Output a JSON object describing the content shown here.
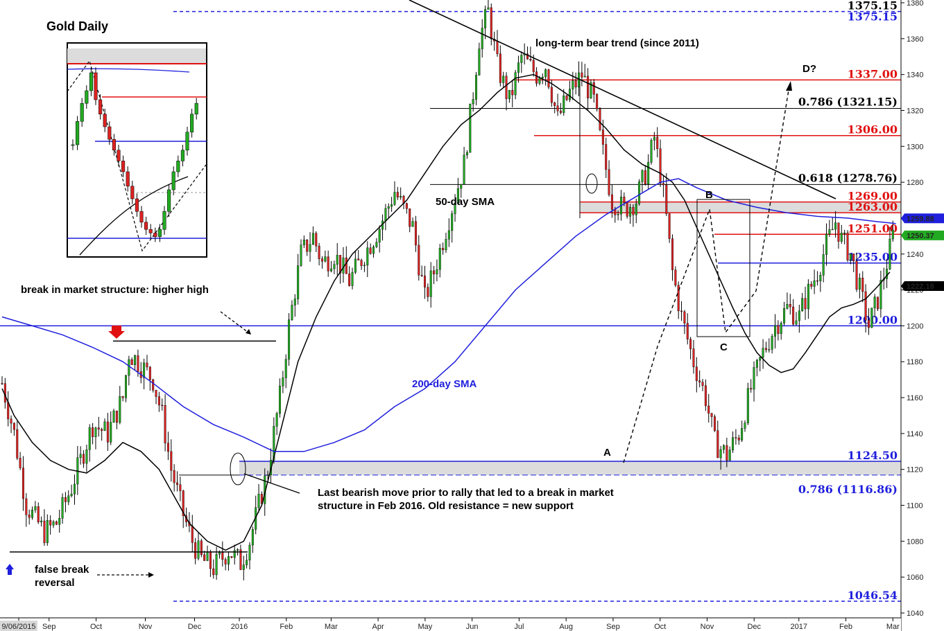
{
  "chart_data": {
    "type": "candlestick",
    "title": "Gold Daily",
    "y_range": [
      1040,
      1380
    ],
    "y_ticks": [
      1040,
      1060,
      1080,
      1100,
      1120,
      1140,
      1160,
      1180,
      1200,
      1220,
      1240,
      1260,
      1280,
      1300,
      1320,
      1340,
      1360,
      1380
    ],
    "x_ticks": [
      "9/06/2015",
      "Sep",
      "Oct",
      "Nov",
      "Dec",
      "2016",
      "Feb",
      "Mar",
      "Apr",
      "May",
      "Jun",
      "Jul",
      "Aug",
      "Sep",
      "Oct",
      "Nov",
      "Dec",
      "2017",
      "Feb",
      "Mar"
    ],
    "colors": {
      "bull": "#22aa22",
      "bear": "#dd2222",
      "sma200": "#1f1fdd",
      "sma50": "#000000",
      "red_level": "#e01010",
      "blue_level": "#1f1fdd"
    },
    "price_path": [
      [
        0,
        1168
      ],
      [
        4,
        1140
      ],
      [
        8,
        1100
      ],
      [
        14,
        1085
      ],
      [
        18,
        1090
      ],
      [
        23,
        1110
      ],
      [
        27,
        1130
      ],
      [
        30,
        1145
      ],
      [
        35,
        1140
      ],
      [
        40,
        1160
      ],
      [
        42,
        1185
      ],
      [
        45,
        1180
      ],
      [
        50,
        1170
      ],
      [
        53,
        1150
      ],
      [
        56,
        1120
      ],
      [
        60,
        1095
      ],
      [
        63,
        1080
      ],
      [
        66,
        1070
      ],
      [
        70,
        1065
      ],
      [
        75,
        1075
      ],
      [
        79,
        1068
      ],
      [
        82,
        1080
      ],
      [
        85,
        1100
      ],
      [
        88,
        1120
      ],
      [
        92,
        1160
      ],
      [
        95,
        1200
      ],
      [
        99,
        1240
      ],
      [
        103,
        1250
      ],
      [
        106,
        1235
      ],
      [
        110,
        1240
      ],
      [
        115,
        1225
      ],
      [
        120,
        1240
      ],
      [
        125,
        1255
      ],
      [
        130,
        1275
      ],
      [
        136,
        1255
      ],
      [
        140,
        1215
      ],
      [
        143,
        1230
      ],
      [
        148,
        1260
      ],
      [
        153,
        1290
      ],
      [
        156,
        1330
      ],
      [
        158,
        1360
      ],
      [
        161,
        1375
      ],
      [
        164,
        1345
      ],
      [
        168,
        1325
      ],
      [
        172,
        1350
      ],
      [
        177,
        1340
      ],
      [
        180,
        1345
      ],
      [
        184,
        1315
      ],
      [
        188,
        1330
      ],
      [
        192,
        1340
      ],
      [
        196,
        1325
      ],
      [
        198,
        1305
      ],
      [
        202,
        1270
      ],
      [
        206,
        1265
      ],
      [
        210,
        1270
      ],
      [
        214,
        1290
      ],
      [
        216,
        1305
      ],
      [
        218,
        1285
      ],
      [
        220,
        1260
      ],
      [
        222,
        1230
      ],
      [
        225,
        1205
      ],
      [
        229,
        1180
      ],
      [
        233,
        1160
      ],
      [
        236,
        1135
      ],
      [
        240,
        1128
      ],
      [
        244,
        1140
      ],
      [
        248,
        1165
      ],
      [
        252,
        1185
      ],
      [
        256,
        1200
      ],
      [
        260,
        1210
      ],
      [
        264,
        1205
      ],
      [
        266,
        1215
      ],
      [
        270,
        1230
      ],
      [
        273,
        1245
      ],
      [
        276,
        1258
      ],
      [
        278,
        1248
      ],
      [
        281,
        1240
      ],
      [
        284,
        1220
      ],
      [
        287,
        1200
      ],
      [
        290,
        1215
      ],
      [
        293,
        1235
      ],
      [
        295,
        1250
      ]
    ],
    "series": [
      {
        "name": "50-day SMA",
        "color": "#000000",
        "points": [
          [
            0,
            1165
          ],
          [
            4,
            1150
          ],
          [
            10,
            1135
          ],
          [
            16,
            1125
          ],
          [
            22,
            1120
          ],
          [
            28,
            1118
          ],
          [
            34,
            1125
          ],
          [
            40,
            1135
          ],
          [
            46,
            1130
          ],
          [
            52,
            1120
          ],
          [
            56,
            1108
          ],
          [
            62,
            1090
          ],
          [
            68,
            1080
          ],
          [
            74,
            1075
          ],
          [
            80,
            1080
          ],
          [
            86,
            1100
          ],
          [
            92,
            1140
          ],
          [
            98,
            1180
          ],
          [
            104,
            1205
          ],
          [
            110,
            1225
          ],
          [
            116,
            1240
          ],
          [
            122,
            1250
          ],
          [
            128,
            1260
          ],
          [
            134,
            1270
          ],
          [
            140,
            1285
          ],
          [
            146,
            1300
          ],
          [
            152,
            1312
          ],
          [
            158,
            1320
          ],
          [
            164,
            1330
          ],
          [
            170,
            1338
          ],
          [
            176,
            1340
          ],
          [
            182,
            1335
          ],
          [
            188,
            1328
          ],
          [
            194,
            1320
          ],
          [
            200,
            1310
          ],
          [
            206,
            1298
          ],
          [
            212,
            1290
          ],
          [
            218,
            1285
          ],
          [
            222,
            1280
          ],
          [
            226,
            1270
          ],
          [
            230,
            1255
          ],
          [
            234,
            1240
          ],
          [
            238,
            1225
          ],
          [
            242,
            1210
          ],
          [
            246,
            1196
          ],
          [
            250,
            1185
          ],
          [
            254,
            1178
          ],
          [
            258,
            1174
          ],
          [
            262,
            1176
          ],
          [
            266,
            1185
          ],
          [
            270,
            1195
          ],
          [
            274,
            1205
          ],
          [
            278,
            1210
          ],
          [
            282,
            1212
          ],
          [
            286,
            1215
          ],
          [
            290,
            1222
          ],
          [
            294,
            1230
          ]
        ]
      },
      {
        "name": "200-day SMA",
        "color": "#1f1fdd",
        "points": [
          [
            0,
            1205
          ],
          [
            10,
            1200
          ],
          [
            20,
            1195
          ],
          [
            30,
            1188
          ],
          [
            40,
            1180
          ],
          [
            50,
            1168
          ],
          [
            60,
            1155
          ],
          [
            70,
            1145
          ],
          [
            80,
            1138
          ],
          [
            90,
            1130
          ],
          [
            100,
            1130
          ],
          [
            110,
            1135
          ],
          [
            120,
            1142
          ],
          [
            130,
            1155
          ],
          [
            140,
            1165
          ],
          [
            150,
            1180
          ],
          [
            160,
            1200
          ],
          [
            170,
            1220
          ],
          [
            180,
            1235
          ],
          [
            190,
            1250
          ],
          [
            200,
            1262
          ],
          [
            210,
            1272
          ],
          [
            218,
            1280
          ],
          [
            224,
            1282
          ],
          [
            230,
            1277
          ],
          [
            240,
            1270
          ],
          [
            250,
            1266
          ],
          [
            260,
            1263
          ],
          [
            270,
            1261
          ],
          [
            280,
            1260
          ],
          [
            290,
            1258
          ],
          [
            296,
            1257
          ]
        ]
      }
    ],
    "levels": [
      {
        "label": "1375.15",
        "value": 1375.15,
        "color": "#1f1fdd"
      },
      {
        "label": "1337.00",
        "value": 1337,
        "color": "#e01010"
      },
      {
        "label": "1306.00",
        "value": 1306,
        "color": "#e01010"
      },
      {
        "label": "1269.00",
        "value": 1269,
        "color": "#e01010"
      },
      {
        "label": "1263.00",
        "value": 1263,
        "color": "#e01010"
      },
      {
        "label": "1251.00",
        "value": 1251,
        "color": "#e01010"
      },
      {
        "label": "1235.00",
        "value": 1235,
        "color": "#1f1fdd"
      },
      {
        "label": "1200.00",
        "value": 1200,
        "color": "#1f1fdd"
      },
      {
        "label": "1124.50",
        "value": 1124.5,
        "color": "#1f1fdd"
      },
      {
        "label": "1046.54",
        "value": 1046.54,
        "color": "#1f1fdd"
      }
    ],
    "fib_levels": [
      {
        "label": "0.786 (1321.15)",
        "value": 1321.15,
        "color": "#000000"
      },
      {
        "label": "0.618 (1278.76)",
        "value": 1278.76,
        "color": "#000000"
      },
      {
        "label": "0.786 (1116.86)",
        "value": 1116.86,
        "color": "#1f1fdd"
      }
    ],
    "right_axis_labels": [
      {
        "label": "1375.15",
        "value": 1375.15
      },
      {
        "label": "1259.88",
        "value": 1259.88,
        "bg": "#1f1fdd",
        "fg": "#ffffff"
      },
      {
        "label": "1250.37",
        "value": 1250.37,
        "bg": "#22aa22",
        "fg": "#ffffff"
      },
      {
        "label": "1222.18",
        "value": 1222.18,
        "bg": "#000000",
        "fg": "#ffffff"
      }
    ],
    "point_labels": [
      {
        "label": "A",
        "value": 1130
      },
      {
        "label": "B",
        "value": 1270
      },
      {
        "label": "C",
        "value": 1192
      },
      {
        "label": "D?",
        "value": 1342
      }
    ],
    "annotations": {
      "bear_trend": "long-term bear trend (since 2011)",
      "sma50": "50-day SMA",
      "sma200": "200-day SMA",
      "market_structure": "break in market structure: higher high",
      "last_bearish_1": "Last bearish move prior to rally that led to a break in market",
      "last_bearish_2": "structure in Feb 2016. Old resistance = new support",
      "false_break_1": "false break",
      "false_break_2": "reversal"
    },
    "inset": {
      "closes": [
        1305,
        1318,
        1328,
        1335,
        1345,
        1330,
        1322,
        1315,
        1308,
        1302,
        1296,
        1290,
        1282,
        1275,
        1268,
        1262,
        1258,
        1256,
        1254,
        1258,
        1268,
        1280,
        1290,
        1296,
        1302,
        1312,
        1322,
        1328
      ]
    }
  }
}
